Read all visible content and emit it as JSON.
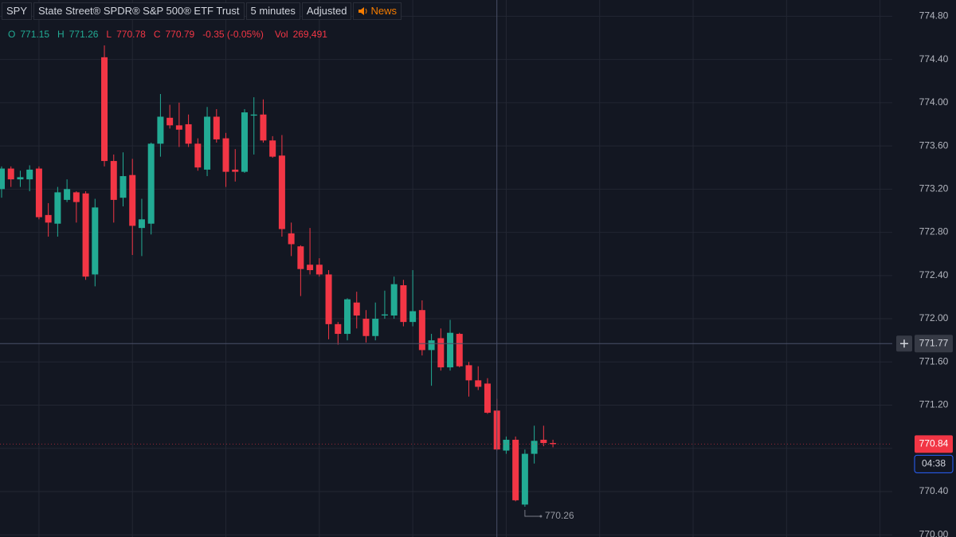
{
  "header": {
    "symbol": "SPY",
    "name": "State Street® SPDR® S&P 500® ETF Trust",
    "interval": "5 minutes",
    "adjustment": "Adjusted",
    "news": "News"
  },
  "legend": {
    "open_label": "O",
    "open": 771.15,
    "high_label": "H",
    "high": 771.26,
    "low_label": "L",
    "low": 770.78,
    "close_label": "C",
    "close": 770.79,
    "change": "-0.35 (-0.05%)",
    "volume_label": "Vol",
    "volume": "269,491"
  },
  "chart_data": {
    "type": "candlestick",
    "open": [
      773.2,
      773.39,
      773.29,
      773.29,
      773.39,
      772.96,
      772.88,
      773.1,
      773.17,
      773.16,
      772.41,
      774.42,
      773.46,
      773.12,
      773.33,
      772.84,
      772.88,
      773.62,
      773.86,
      773.79,
      773.8,
      773.62,
      773.38,
      773.87,
      773.67,
      773.38,
      773.36,
      773.88,
      773.89,
      773.65,
      773.51,
      772.79,
      772.67,
      772.5,
      772.5,
      772.41,
      771.95,
      771.86,
      772.15,
      772.0,
      771.84,
      772.03,
      772.03,
      772.31,
      771.97,
      772.08,
      771.71,
      771.82,
      771.55,
      771.86,
      771.57,
      771.43,
      771.4,
      771.15,
      770.78,
      770.88,
      770.28,
      770.75,
      770.88,
      770.85
    ],
    "high": [
      773.41,
      773.41,
      773.37,
      773.42,
      773.41,
      773.07,
      773.22,
      773.29,
      773.18,
      773.18,
      773.11,
      774.53,
      773.52,
      773.54,
      773.48,
      773.11,
      773.63,
      774.08,
      773.98,
      774.0,
      773.89,
      773.67,
      773.96,
      773.94,
      773.72,
      773.57,
      773.94,
      774.05,
      774.03,
      773.69,
      773.7,
      772.89,
      772.68,
      772.84,
      772.56,
      772.45,
      771.97,
      772.19,
      772.25,
      772.08,
      772.15,
      772.26,
      772.39,
      772.36,
      772.45,
      772.17,
      771.86,
      771.91,
      771.99,
      771.87,
      771.6,
      771.56,
      771.45,
      771.26,
      770.91,
      770.91,
      770.79,
      771.01,
      771.01,
      770.88
    ],
    "low": [
      773.12,
      773.22,
      773.22,
      773.18,
      772.92,
      772.76,
      772.76,
      773.08,
      772.89,
      772.36,
      772.3,
      773.41,
      772.89,
      773.04,
      772.59,
      772.58,
      772.78,
      773.5,
      773.76,
      773.59,
      773.59,
      773.37,
      773.32,
      773.63,
      773.22,
      773.27,
      773.35,
      773.52,
      773.63,
      773.49,
      772.76,
      772.58,
      772.21,
      772.41,
      772.39,
      771.81,
      771.76,
      771.8,
      771.91,
      771.78,
      771.8,
      772.0,
      772.0,
      771.93,
      771.93,
      771.66,
      771.38,
      771.52,
      771.52,
      771.55,
      771.28,
      771.34,
      771.12,
      770.78,
      770.75,
      770.31,
      770.26,
      770.66,
      770.82,
      770.81
    ],
    "close": [
      773.39,
      773.29,
      773.31,
      773.38,
      772.94,
      772.89,
      773.17,
      773.2,
      773.08,
      772.39,
      773.03,
      773.46,
      773.1,
      773.32,
      772.86,
      772.92,
      773.62,
      773.87,
      773.79,
      773.75,
      773.62,
      773.4,
      773.87,
      773.66,
      773.36,
      773.36,
      773.91,
      773.89,
      773.65,
      773.5,
      772.83,
      772.69,
      772.46,
      772.45,
      772.41,
      771.95,
      771.86,
      772.18,
      772.03,
      771.84,
      772.0,
      772.04,
      772.32,
      771.97,
      772.07,
      771.71,
      771.8,
      771.55,
      771.87,
      771.56,
      771.43,
      771.37,
      771.13,
      770.79,
      770.88,
      770.32,
      770.75,
      770.87,
      770.85,
      770.84
    ],
    "up_color": "#22ab94",
    "down_color": "#f23645",
    "ylim": [
      769.98,
      774.95
    ],
    "yticks": [
      {
        "value": 774.8,
        "label": "774.80"
      },
      {
        "value": 774.4,
        "label": "774.40"
      },
      {
        "value": 774.0,
        "label": "774.00"
      },
      {
        "value": 773.6,
        "label": "773.60"
      },
      {
        "value": 773.2,
        "label": "773.20"
      },
      {
        "value": 772.8,
        "label": "772.80"
      },
      {
        "value": 772.4,
        "label": "772.40"
      },
      {
        "value": 772.0,
        "label": "772.00"
      },
      {
        "value": 771.6,
        "label": "771.60"
      },
      {
        "value": 771.2,
        "label": "771.20"
      },
      {
        "value": 770.8,
        "label": "770.80"
      },
      {
        "value": 770.4,
        "label": "770.40"
      },
      {
        "value": 770.0,
        "label": "770.00"
      }
    ],
    "grid": true,
    "crosshair": 771.77,
    "countdown": "04:38"
  }
}
